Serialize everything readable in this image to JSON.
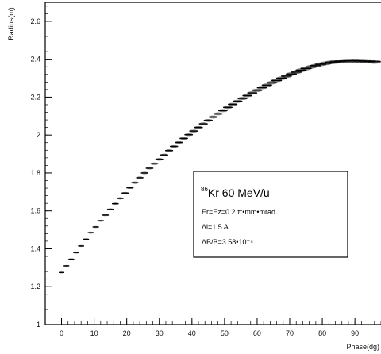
{
  "chart_data": {
    "type": "scatter",
    "title": "",
    "xlabel": "Phase(dg)",
    "ylabel": "Radius(m)",
    "xlim": [
      -5,
      98
    ],
    "ylim": [
      1,
      2.7
    ],
    "x_ticks": [
      "0",
      "10",
      "20",
      "30",
      "40",
      "50",
      "60",
      "70",
      "80",
      "90"
    ],
    "y_ticks": [
      "1",
      "1.2",
      "1.4",
      "1.6",
      "1.8",
      "2",
      "2.2",
      "2.4",
      "2.6"
    ],
    "grid": false,
    "legend": {
      "isotope_mass": "86",
      "title_rest": "Kr 60 MeV/u",
      "lines": [
        "Er=Ez=0.2 π•mm•mrad",
        "Δl=1.5 A",
        "ΔB/B=3.58•10⁻⁴"
      ],
      "placement": "right-middle"
    },
    "series": [
      {
        "x": [
          0,
          1.5,
          3,
          4.5,
          6,
          7.5,
          9,
          10.5,
          12,
          13.5,
          15,
          16.5,
          18,
          19.5,
          21,
          22.5,
          24,
          25.5,
          27,
          28.5,
          30,
          31.5,
          33,
          34.5,
          36,
          37.5,
          39,
          40.5,
          42,
          43.5,
          45,
          46.5,
          48,
          49.5,
          51,
          52.5,
          54,
          55.5,
          57,
          58.5,
          60,
          61.5,
          63,
          64.5,
          66,
          67.5,
          69,
          70.5,
          72,
          73.5,
          75,
          76.5,
          78,
          79.5,
          81,
          82.5,
          84,
          85.5,
          87,
          88.5,
          90,
          91.5,
          93,
          94.5,
          96
        ],
        "y": [
          1.275,
          1.31,
          1.345,
          1.38,
          1.415,
          1.45,
          1.485,
          1.515,
          1.548,
          1.578,
          1.608,
          1.638,
          1.666,
          1.694,
          1.722,
          1.749,
          1.775,
          1.8,
          1.825,
          1.849,
          1.872,
          1.895,
          1.918,
          1.94,
          1.961,
          1.982,
          2.002,
          2.021,
          2.04,
          2.059,
          2.077,
          2.095,
          2.112,
          2.129,
          2.146,
          2.162,
          2.178,
          2.193,
          2.208,
          2.222,
          2.236,
          2.25,
          2.263,
          2.276,
          2.288,
          2.3,
          2.311,
          2.322,
          2.332,
          2.342,
          2.351,
          2.359,
          2.366,
          2.373,
          2.378,
          2.383,
          2.386,
          2.389,
          2.391,
          2.392,
          2.392,
          2.391,
          2.39,
          2.389,
          2.387
        ]
      }
    ]
  }
}
